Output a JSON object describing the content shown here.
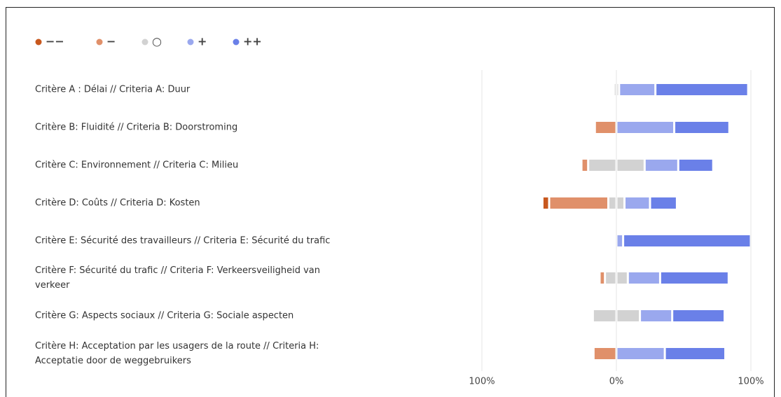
{
  "chart_data": {
    "type": "diverging-bar",
    "categories": [
      "Critère A : Délai // Criteria A: Duur",
      "Critère B: Fluidité // Criteria B: Doorstroming",
      "Critère C: Environnement // Criteria C: Milieu",
      "Critère D: Coûts // Criteria D: Kosten",
      "Critère E: Sécurité des travailleurs // Criteria E: Sécurité du trafic",
      "Critère F: Sécurité du trafic // Criteria F: Verkeersveiligheid van verkeer",
      "Critère G: Aspects sociaux // Criteria G: Sociale aspecten",
      "Critère H: Acceptation par les usagers de la route // Criteria H: Acceptatie door de weggebruikers"
    ],
    "series": [
      {
        "name": "−−",
        "color": "#c8581e",
        "values": [
          0,
          0,
          0,
          5,
          0,
          0,
          0,
          0
        ]
      },
      {
        "name": "−",
        "color": "#e0906a",
        "values": [
          0,
          16,
          5,
          44,
          0,
          4,
          0,
          17
        ]
      },
      {
        "name": "○",
        "color": "#d2d2d2",
        "values": [
          4,
          0,
          42,
          12,
          0,
          17,
          35,
          0
        ]
      },
      {
        "name": "+",
        "color": "#9aa8ee",
        "values": [
          27,
          43,
          25,
          19,
          5,
          24,
          24,
          36
        ]
      },
      {
        "name": "++",
        "color": "#6a80e8",
        "values": [
          69,
          41,
          26,
          20,
          95,
          51,
          39,
          45
        ]
      }
    ],
    "xlim": [
      -100,
      100
    ],
    "xticks": [
      {
        "value": -100,
        "label": "100%"
      },
      {
        "value": 0,
        "label": "0%"
      },
      {
        "value": 100,
        "label": "100%"
      }
    ],
    "grid": true
  }
}
